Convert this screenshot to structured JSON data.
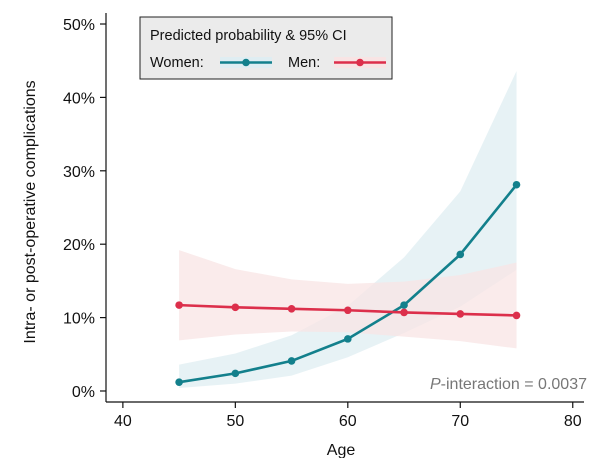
{
  "chart_data": {
    "type": "line",
    "xlabel": "Age",
    "ylabel": "Intra- or post-operative complications",
    "xlim": [
      38.5,
      81
    ],
    "ylim": [
      -1.5,
      51.5
    ],
    "x_ticks": [
      40,
      50,
      60,
      70,
      80
    ],
    "y_ticks": [
      0,
      10,
      20,
      30,
      40,
      50
    ],
    "x_tick_labels": [
      "40",
      "50",
      "60",
      "70",
      "80"
    ],
    "y_tick_labels": [
      "0%",
      "10%",
      "20%",
      "30%",
      "40%",
      "50%"
    ],
    "legend": {
      "title": "Predicted probability & 95% CI",
      "placement": "top-left",
      "entries": [
        "Women:",
        "Men:"
      ]
    },
    "annotation": {
      "italic_part": "P",
      "rest": "-interaction = 0.0037",
      "placement": "bottom-right"
    },
    "x": [
      45,
      50,
      55,
      60,
      65,
      70,
      75
    ],
    "series": [
      {
        "name": "Women",
        "color": "#13808c",
        "band_color": "#dfedf2",
        "values": [
          1.2,
          2.4,
          4.1,
          7.1,
          11.7,
          18.6,
          28.1
        ],
        "ci_lower": [
          0.4,
          1.0,
          2.1,
          4.6,
          7.9,
          11.5,
          16.5
        ],
        "ci_upper": [
          3.6,
          5.1,
          7.6,
          11.6,
          18.2,
          27.2,
          43.6
        ]
      },
      {
        "name": "Men",
        "color": "#dc2f4b",
        "band_color": "#f8e4e4",
        "values": [
          11.7,
          11.4,
          11.2,
          11.0,
          10.7,
          10.5,
          10.3
        ],
        "ci_lower": [
          6.9,
          7.7,
          8.1,
          8.0,
          7.4,
          6.8,
          5.8
        ],
        "ci_upper": [
          19.2,
          16.6,
          15.2,
          14.6,
          14.9,
          15.8,
          17.5
        ]
      }
    ]
  }
}
